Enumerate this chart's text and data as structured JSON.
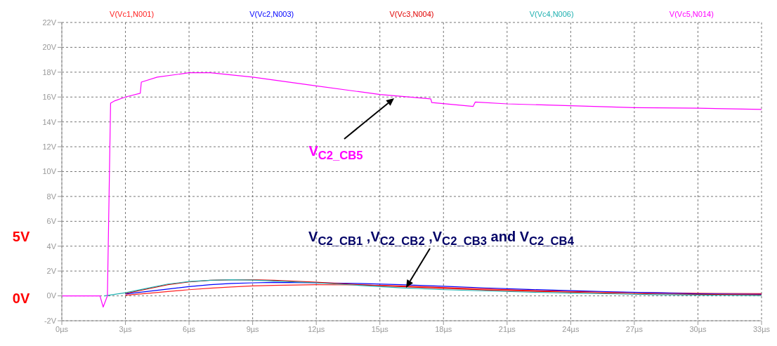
{
  "chart_data": {
    "type": "line",
    "legend": "top",
    "grid": true,
    "line_style": "solid",
    "marker": "none",
    "x": [
      2,
      3,
      4,
      5,
      6,
      7,
      8,
      9,
      10,
      12,
      14,
      16,
      18,
      20,
      22,
      24,
      26,
      28,
      30,
      33
    ],
    "series": [
      {
        "name": "V(Vc1,N001)",
        "color": "#ff2020",
        "values": [
          null,
          0.05,
          0.2,
          0.35,
          0.5,
          0.62,
          0.72,
          0.8,
          0.85,
          0.9,
          0.88,
          0.8,
          0.68,
          0.56,
          0.45,
          0.36,
          0.3,
          0.25,
          0.21,
          0.18
        ]
      },
      {
        "name": "V(Vc2,N003)",
        "color": "#0000ff",
        "values": [
          null,
          0.15,
          0.35,
          0.55,
          0.75,
          0.9,
          1.0,
          1.05,
          1.08,
          1.05,
          1.0,
          0.9,
          0.77,
          0.64,
          0.52,
          0.42,
          0.33,
          0.25,
          0.17,
          0.12
        ]
      },
      {
        "name": "V(Vc3,N004)",
        "color": "#e00000",
        "values": [
          null,
          0.2,
          0.55,
          0.9,
          1.12,
          1.25,
          1.3,
          1.3,
          1.25,
          1.1,
          0.9,
          0.75,
          0.6,
          0.48,
          0.38,
          0.3,
          0.22,
          0.16,
          0.12,
          0.08
        ]
      },
      {
        "name": "V(Vc4,N006)",
        "color": "#20b0b0",
        "values": [
          0,
          0.25,
          0.6,
          0.95,
          1.15,
          1.25,
          1.3,
          1.27,
          1.2,
          1.05,
          0.85,
          0.65,
          0.5,
          0.4,
          0.3,
          0.22,
          0.16,
          0.1,
          0.07,
          0.03
        ]
      },
      {
        "name": "V(Vc5,N014)",
        "color": "#ff00ff",
        "x": [
          0,
          1.8,
          1.95,
          2.15,
          2.3,
          2.5,
          3,
          3.7,
          3.75,
          4.5,
          6,
          7,
          9,
          12,
          15,
          17.4,
          17.45,
          19.4,
          19.5,
          21,
          24,
          27,
          30,
          33
        ],
        "values": [
          0,
          0,
          -0.9,
          0,
          15.5,
          15.7,
          16.0,
          16.3,
          17.2,
          17.6,
          17.95,
          17.95,
          17.6,
          16.9,
          16.2,
          15.85,
          15.55,
          15.25,
          15.6,
          15.45,
          15.3,
          15.15,
          15.1,
          15.0
        ]
      }
    ],
    "xlim": [
      0,
      33
    ],
    "xticks": [
      {
        "value": 0,
        "label": "0µs"
      },
      {
        "value": 3,
        "label": "3µs"
      },
      {
        "value": 6,
        "label": "6µs"
      },
      {
        "value": 9,
        "label": "9µs"
      },
      {
        "value": 12,
        "label": "12µs"
      },
      {
        "value": 15,
        "label": "15µs"
      },
      {
        "value": 18,
        "label": "18µs"
      },
      {
        "value": 21,
        "label": "21µs"
      },
      {
        "value": 24,
        "label": "24µs"
      },
      {
        "value": 27,
        "label": "27µs"
      },
      {
        "value": 30,
        "label": "30µs"
      },
      {
        "value": 33,
        "label": "33µs"
      }
    ],
    "ylim": [
      -2,
      22
    ],
    "yticks": [
      {
        "value": -2,
        "label": "-2V"
      },
      {
        "value": 0,
        "label": "0V"
      },
      {
        "value": 2,
        "label": "2V"
      },
      {
        "value": 4,
        "label": "4V"
      },
      {
        "value": 6,
        "label": "6V"
      },
      {
        "value": 8,
        "label": "8V"
      },
      {
        "value": 10,
        "label": "10V"
      },
      {
        "value": 12,
        "label": "12V"
      },
      {
        "value": 14,
        "label": "14V"
      },
      {
        "value": 16,
        "label": "16V"
      },
      {
        "value": 18,
        "label": "18V"
      },
      {
        "value": 20,
        "label": "20V"
      },
      {
        "value": 22,
        "label": "22V"
      }
    ],
    "annotations": [
      "V$_{C2_CB5}$",
      "V$_{C2_CB1}$ ,V$_{C2_CB2}$ ,V$_{C2_CB3}$ and V$_{C2_CB4}$",
      "5V",
      "0V"
    ]
  }
}
